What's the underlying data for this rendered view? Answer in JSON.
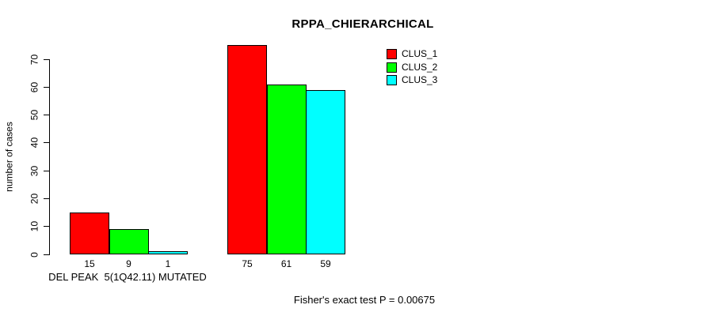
{
  "chart_data": {
    "type": "bar",
    "title": "RPPA_CHIERARCHICAL",
    "ylabel": "number of cases",
    "xlabel": "DEL PEAK  5(1Q42.11) MUTATED",
    "note": "Fisher's exact test P = 0.00675",
    "ylim": [
      0,
      70
    ],
    "yticks": [
      0,
      10,
      20,
      30,
      40,
      50,
      60,
      70
    ],
    "grid": false,
    "legend_position": "top-right",
    "bar_value_labels_shown": true,
    "categories": [
      "DEL PEAK 5(1Q42.11) MUTATED",
      ""
    ],
    "series": [
      {
        "name": "CLUS_1",
        "color": "#FF0000",
        "values": [
          15,
          75
        ]
      },
      {
        "name": "CLUS_2",
        "color": "#00FF00",
        "values": [
          9,
          61
        ]
      },
      {
        "name": "CLUS_3",
        "color": "#00FFFF",
        "values": [
          1,
          59
        ]
      }
    ],
    "background_color": "#FFFFFF",
    "axis_color": "#000000"
  }
}
